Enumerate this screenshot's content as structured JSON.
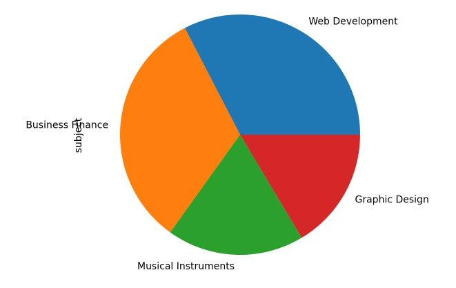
{
  "chart_data": {
    "type": "pie",
    "ylabel": "subject",
    "categories": [
      "Web Development",
      "Business Finance",
      "Musical Instruments",
      "Graphic Design"
    ],
    "values": [
      1200,
      1195,
      680,
      604
    ],
    "colors": [
      "#1f77b4",
      "#ff7f0e",
      "#2ca02c",
      "#d62728"
    ],
    "start_angle_deg": 0,
    "direction": "counterclockwise",
    "legend": "none",
    "grid": false
  }
}
